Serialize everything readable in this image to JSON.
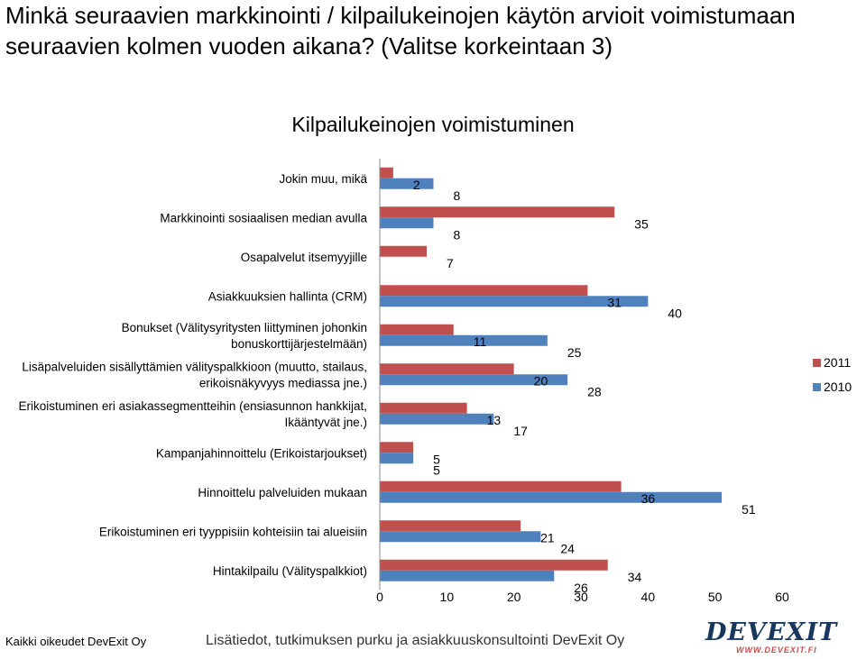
{
  "slide": {
    "title_line1": "Minkä seuraavien markkinointi / kilpailukeinojen käytön arvioit voimistumaan",
    "title_line2": "seuraavien kolmen vuoden aikana? (Valitse korkeintaan 3)"
  },
  "footer": {
    "copyright": "Kaikki oikeudet DevExit Oy",
    "info": "Lisätiedot, tutkimuksen purku ja asiakkuuskonsultointi DevExit Oy"
  },
  "logo": {
    "brand": "DEVEXIT",
    "url": "WWW.DEVEXIT.FI"
  },
  "chart_data": {
    "type": "bar",
    "orientation": "horizontal",
    "title": "Kilpailukeinojen voimistuminen",
    "categories": [
      "Jokin muu, mikä",
      "Markkinointi sosiaalisen median avulla",
      "Osapalvelut itsemyyjille",
      "Asiakkuuksien hallinta (CRM)",
      "Bonukset (Välitysyritysten liittyminen johonkin bonuskorttijärjestelmään)",
      "Lisäpalveluiden sisällyttämien välityspalkkioon (muutto, stailaus, erikoisnäkyvyys mediassa jne.)",
      "Erikoistuminen eri asiakassegmentteihin (ensiasunnon hankkijat, Ikääntyvät jne.)",
      "Kampanjahinnoittelu (Erikoistarjoukset)",
      "Hinnoittelu palveluiden mukaan",
      "Erikoistuminen eri tyyppisiin kohteisiin tai alueisiin",
      "Hintakilpailu (Välityspalkkiot)"
    ],
    "category_lines": [
      [
        "Jokin muu, mikä"
      ],
      [
        "Markkinointi sosiaalisen median avulla"
      ],
      [
        "Osapalvelut itsemyyjille"
      ],
      [
        "Asiakkuuksien hallinta (CRM)"
      ],
      [
        "Bonukset (Välitysyritysten liittyminen johonkin",
        "bonuskorttijärjestelmään)"
      ],
      [
        "Lisäpalveluiden sisällyttämien välityspalkkioon (muutto, stailaus,",
        "erikoisnäkyvyys mediassa jne.)"
      ],
      [
        "Erikoistuminen eri asiakassegmentteihin (ensiasunnon hankkijat,",
        "Ikääntyvät jne.)"
      ],
      [
        "Kampanjahinnoittelu (Erikoistarjoukset)"
      ],
      [
        "Hinnoittelu palveluiden mukaan"
      ],
      [
        "Erikoistuminen eri tyyppisiin kohteisiin tai alueisiin"
      ],
      [
        "Hintakilpailu (Välityspalkkiot)"
      ]
    ],
    "series": [
      {
        "name": "2011",
        "color": "#c0504d",
        "values": [
          2,
          35,
          7,
          31,
          11,
          20,
          13,
          5,
          36,
          21,
          34
        ]
      },
      {
        "name": "2010",
        "color": "#4f81bd",
        "values": [
          8,
          8,
          null,
          40,
          25,
          28,
          17,
          5,
          51,
          24,
          26
        ]
      }
    ],
    "xlim": [
      0,
      60
    ],
    "xticks": [
      0,
      10,
      20,
      30,
      40,
      50,
      60
    ],
    "legend": "right",
    "grid": false
  }
}
